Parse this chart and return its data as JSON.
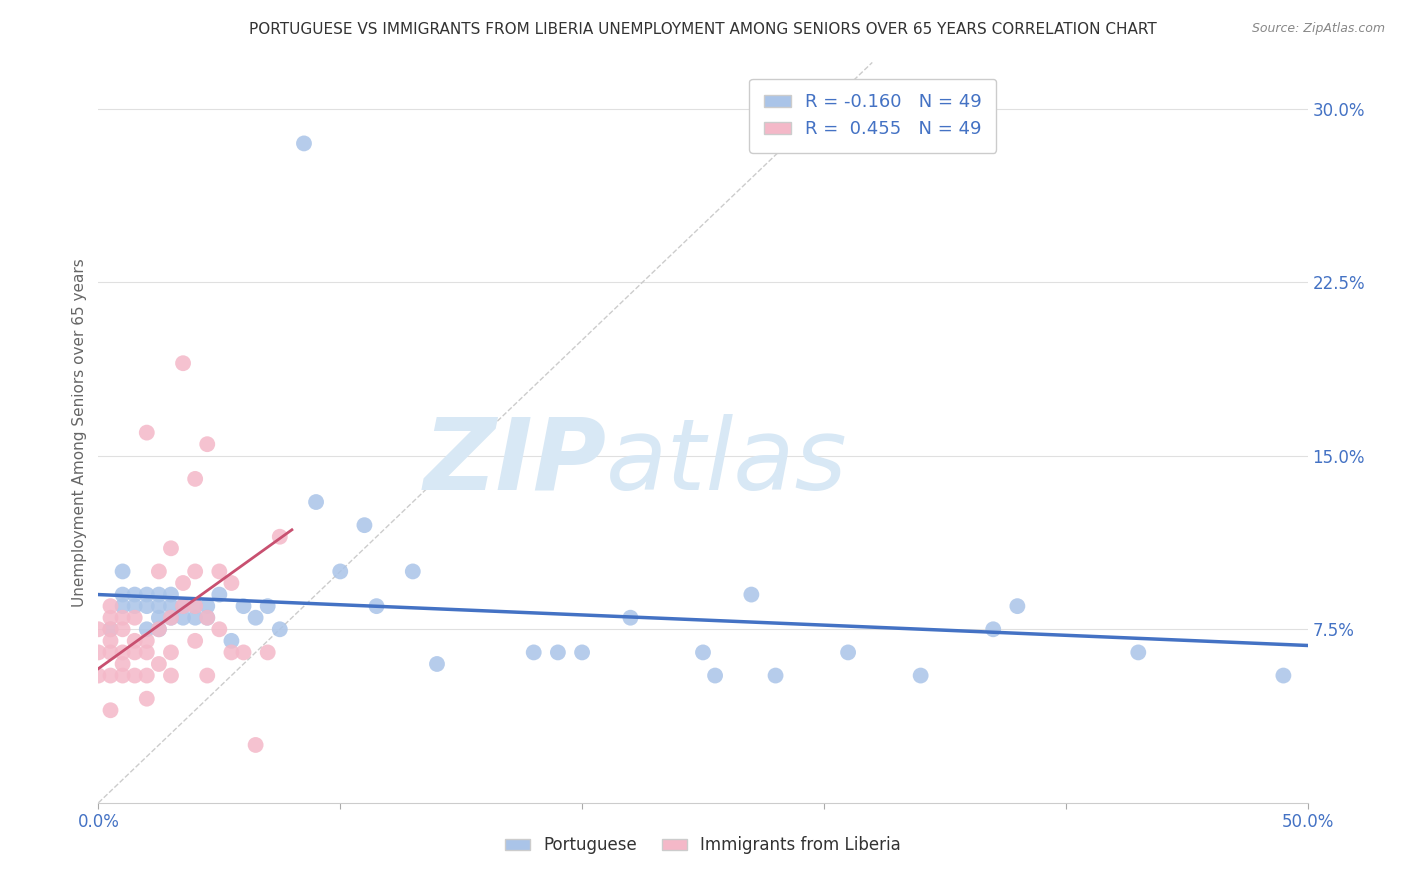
{
  "title": "PORTUGUESE VS IMMIGRANTS FROM LIBERIA UNEMPLOYMENT AMONG SENIORS OVER 65 YEARS CORRELATION CHART",
  "source": "Source: ZipAtlas.com",
  "ylabel": "Unemployment Among Seniors over 65 years",
  "ytick_labels": [
    "7.5%",
    "15.0%",
    "22.5%",
    "30.0%"
  ],
  "ytick_values": [
    0.075,
    0.15,
    0.225,
    0.3
  ],
  "xlim": [
    0.0,
    0.5
  ],
  "ylim": [
    0.0,
    0.32
  ],
  "watermark_zip": "ZIP",
  "watermark_atlas": "atlas",
  "legend_label1": "R = -0.160   N = 49",
  "legend_label2": "R =  0.455   N = 49",
  "legend_color1": "#aac4e8",
  "legend_color2": "#f4b8c8",
  "bottom_legend_label1": "Portuguese",
  "bottom_legend_label2": "Immigrants from Liberia",
  "portuguese_color": "#aac4e8",
  "portuguese_line_color": "#4472c4",
  "liberia_color": "#f4b8c8",
  "liberia_line_color": "#c85070",
  "portuguese_x": [
    0.005,
    0.01,
    0.01,
    0.01,
    0.015,
    0.015,
    0.02,
    0.02,
    0.02,
    0.025,
    0.025,
    0.025,
    0.025,
    0.03,
    0.03,
    0.03,
    0.035,
    0.035,
    0.04,
    0.04,
    0.045,
    0.045,
    0.05,
    0.055,
    0.06,
    0.065,
    0.07,
    0.075,
    0.085,
    0.09,
    0.1,
    0.11,
    0.115,
    0.13,
    0.14,
    0.18,
    0.19,
    0.2,
    0.22,
    0.25,
    0.255,
    0.27,
    0.28,
    0.31,
    0.34,
    0.37,
    0.38,
    0.43,
    0.49
  ],
  "portuguese_y": [
    0.075,
    0.09,
    0.085,
    0.1,
    0.09,
    0.085,
    0.09,
    0.085,
    0.075,
    0.09,
    0.085,
    0.08,
    0.075,
    0.085,
    0.09,
    0.08,
    0.085,
    0.08,
    0.085,
    0.08,
    0.085,
    0.08,
    0.09,
    0.07,
    0.085,
    0.08,
    0.085,
    0.075,
    0.285,
    0.13,
    0.1,
    0.12,
    0.085,
    0.1,
    0.06,
    0.065,
    0.065,
    0.065,
    0.08,
    0.065,
    0.055,
    0.09,
    0.055,
    0.065,
    0.055,
    0.075,
    0.085,
    0.065,
    0.055
  ],
  "portuguese_trend_x": [
    0.0,
    0.5
  ],
  "portuguese_trend_y": [
    0.09,
    0.068
  ],
  "liberia_x": [
    0.0,
    0.0,
    0.0,
    0.005,
    0.005,
    0.005,
    0.005,
    0.005,
    0.005,
    0.005,
    0.01,
    0.01,
    0.01,
    0.01,
    0.01,
    0.015,
    0.015,
    0.015,
    0.015,
    0.02,
    0.02,
    0.02,
    0.02,
    0.02,
    0.025,
    0.025,
    0.025,
    0.03,
    0.03,
    0.03,
    0.03,
    0.035,
    0.035,
    0.035,
    0.04,
    0.04,
    0.04,
    0.04,
    0.045,
    0.045,
    0.045,
    0.05,
    0.05,
    0.055,
    0.055,
    0.06,
    0.065,
    0.07,
    0.075
  ],
  "liberia_y": [
    0.055,
    0.065,
    0.075,
    0.04,
    0.055,
    0.065,
    0.07,
    0.075,
    0.08,
    0.085,
    0.055,
    0.06,
    0.065,
    0.075,
    0.08,
    0.055,
    0.065,
    0.07,
    0.08,
    0.045,
    0.055,
    0.065,
    0.07,
    0.16,
    0.06,
    0.075,
    0.1,
    0.055,
    0.065,
    0.08,
    0.11,
    0.085,
    0.095,
    0.19,
    0.07,
    0.085,
    0.1,
    0.14,
    0.055,
    0.08,
    0.155,
    0.075,
    0.1,
    0.065,
    0.095,
    0.065,
    0.025,
    0.065,
    0.115
  ],
  "liberia_trend_x": [
    0.0,
    0.08
  ],
  "liberia_trend_y": [
    0.058,
    0.118
  ],
  "background_color": "#ffffff",
  "grid_color": "#e0e0e0",
  "title_color": "#333333",
  "axis_color": "#4472c4",
  "watermark_color": "#d8e8f5",
  "watermark_fontsize_zip": 72,
  "watermark_fontsize_atlas": 72
}
